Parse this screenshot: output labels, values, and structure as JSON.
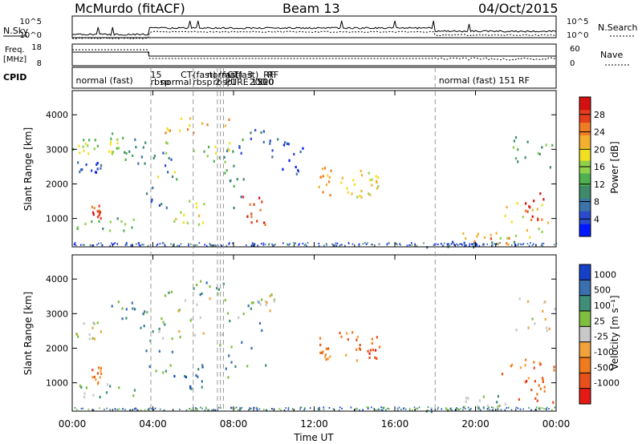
{
  "header": {
    "station": "McMurdo (fitACF)",
    "beam": "Beam 13",
    "date": "04/Oct/2015"
  },
  "side_labels": {
    "nsky": "N.Sky",
    "nsearch": "N.Search",
    "freq_line1": "Freq.",
    "freq_line2": "[MHz]",
    "nave": "Nave",
    "cpid": "CPID"
  },
  "strip_axes": {
    "noise_left": [
      "10^5",
      "10^0"
    ],
    "noise_right": [
      "10^5",
      "10^0"
    ],
    "freq_left": [
      "18",
      "8"
    ],
    "nave_right": [
      "60",
      "0"
    ]
  },
  "cpid_labels": [
    {
      "text": "normal (fast)",
      "t": 0.1
    },
    {
      "text": "rbsp",
      "t": 3.8
    },
    {
      "text": "15",
      "t": 3.8
    },
    {
      "text": "normal",
      "t": 4.3
    },
    {
      "text": "CT-",
      "t": 5.3
    },
    {
      "text": "rbsp",
      "t": 5.9
    },
    {
      "text": "(fast)",
      "t": 5.9
    },
    {
      "text": "rbsp",
      "t": 6.9
    },
    {
      "text": "normal",
      "t": 6.6
    },
    {
      "text": "2",
      "t": 7.0
    },
    {
      "text": "(fast)",
      "t": 7.2
    },
    {
      "text": "PURE",
      "t": 7.5
    },
    {
      "text": "CT-",
      "t": 7.6
    },
    {
      "text": "1",
      "t": 7.8
    },
    {
      "text": "(fast)",
      "t": 8.0
    },
    {
      "text": "200",
      "t": 8.7
    },
    {
      "text": "3",
      "t": 8.6
    },
    {
      "text": "1500",
      "t": 8.8
    },
    {
      "text": "RF",
      "t": 9.4
    },
    {
      "text": "220",
      "t": 9.1
    },
    {
      "text": "RF",
      "t": 9.6
    },
    {
      "text": "normal (fast) 151 RF",
      "t": 18.1
    }
  ],
  "chart_data": [
    {
      "type": "heatmap",
      "name_shown": "",
      "ylabel": "Slant Range [km]",
      "xlabel": "",
      "xlim": [
        0,
        24
      ],
      "ylim": [
        180,
        4700
      ],
      "x_ticks": [
        0,
        4,
        8,
        12,
        16,
        20,
        24
      ],
      "y_ticks": [
        1000,
        2000,
        3000,
        4000
      ],
      "colorbar": {
        "label": "Power [dB]",
        "ticks": [
          "4",
          "8",
          "12",
          "16",
          "20",
          "24",
          "28"
        ],
        "colors": [
          "#0018ff",
          "#2a4bd0",
          "#3c73a8",
          "#3f8a6a",
          "#4fb04f",
          "#8fd14a",
          "#f0e020",
          "#f3b030",
          "#ef7d24",
          "#e53e1c",
          "#d41010"
        ]
      },
      "scatter_regions": [
        {
          "t0": 0.0,
          "t1": 1.4,
          "r0": 2300,
          "r1": 2700,
          "lvl": 1
        },
        {
          "t0": 0.0,
          "t1": 1.3,
          "r0": 2850,
          "r1": 3500,
          "lvl": 5
        },
        {
          "t0": 0.9,
          "t1": 1.4,
          "r0": 950,
          "r1": 1400,
          "lvl": 9
        },
        {
          "t0": 0.2,
          "t1": 3.6,
          "r0": 620,
          "r1": 1100,
          "lvl": 4
        },
        {
          "t0": 1.7,
          "t1": 2.4,
          "r0": 2900,
          "r1": 3500,
          "lvl": 5
        },
        {
          "t0": 2.0,
          "t1": 3.6,
          "r0": 2600,
          "r1": 3400,
          "lvl": 3
        },
        {
          "t0": 3.6,
          "t1": 5.0,
          "r0": 1300,
          "r1": 3100,
          "lvl": 2
        },
        {
          "t0": 4.2,
          "t1": 7.8,
          "r0": 2100,
          "r1": 3500,
          "lvl": 5
        },
        {
          "t0": 4.4,
          "t1": 7.8,
          "r0": 3500,
          "r1": 4000,
          "lvl": 7
        },
        {
          "t0": 5.0,
          "t1": 6.6,
          "r0": 850,
          "r1": 1600,
          "lvl": 6
        },
        {
          "t0": 7.5,
          "t1": 8.5,
          "r0": 1000,
          "r1": 3400,
          "lvl": 3
        },
        {
          "t0": 8.4,
          "t1": 9.6,
          "r0": 700,
          "r1": 1700,
          "lvl": 9
        },
        {
          "t0": 8.2,
          "t1": 10.2,
          "r0": 2800,
          "r1": 3700,
          "lvl": 2
        },
        {
          "t0": 10.2,
          "t1": 11.4,
          "r0": 2300,
          "r1": 3300,
          "lvl": 1
        },
        {
          "t0": 12.2,
          "t1": 12.8,
          "r0": 1700,
          "r1": 2500,
          "lvl": 7
        },
        {
          "t0": 13.2,
          "t1": 14.4,
          "r0": 1600,
          "r1": 2500,
          "lvl": 6
        },
        {
          "t0": 14.6,
          "t1": 15.2,
          "r0": 1700,
          "r1": 2400,
          "lvl": 6
        },
        {
          "t0": 17.5,
          "t1": 22.3,
          "r0": 200,
          "r1": 380,
          "lvl": 2
        },
        {
          "t0": 19.2,
          "t1": 21.8,
          "r0": 250,
          "r1": 650,
          "lvl": 8
        },
        {
          "t0": 21.2,
          "t1": 24.0,
          "r0": 450,
          "r1": 1600,
          "lvl": 6
        },
        {
          "t0": 22.4,
          "t1": 23.4,
          "r0": 800,
          "r1": 1800,
          "lvl": 9
        },
        {
          "t0": 21.8,
          "t1": 24.0,
          "r0": 2500,
          "r1": 3500,
          "lvl": 4
        }
      ]
    },
    {
      "type": "heatmap",
      "name_shown": "",
      "ylabel": "Slant Range [km]",
      "xlabel": "Time UT",
      "xlim": [
        0,
        24
      ],
      "ylim": [
        180,
        4700
      ],
      "x_ticks": [
        0,
        4,
        8,
        12,
        16,
        20,
        24
      ],
      "x_tick_labels": [
        "00:00",
        "04:00",
        "08:00",
        "12:00",
        "16:00",
        "20:00",
        "00:00"
      ],
      "y_ticks": [
        1000,
        2000,
        3000,
        4000
      ],
      "colorbar": {
        "label": "Velocity [m s⁻¹]",
        "ticks": [
          "1000",
          "500",
          "100",
          "25",
          "-25",
          "-100",
          "-500",
          "-1000"
        ],
        "colors": [
          "#1540c8",
          "#3a6fb0",
          "#3e8e78",
          "#7fbf3f",
          "#c8c8c8",
          "#f2a23a",
          "#f07b1e",
          "#e8501a",
          "#e51a14"
        ]
      },
      "scatter_regions": [
        {
          "t0": 0.0,
          "t1": 1.4,
          "r0": 2300,
          "r1": 2800,
          "lvl": 4
        },
        {
          "t0": 0.9,
          "t1": 1.4,
          "r0": 950,
          "r1": 1500,
          "lvl": 6
        },
        {
          "t0": 0.2,
          "t1": 3.6,
          "r0": 620,
          "r1": 1000,
          "lvl": 3
        },
        {
          "t0": 1.7,
          "t1": 3.6,
          "r0": 2600,
          "r1": 3400,
          "lvl": 2
        },
        {
          "t0": 3.6,
          "t1": 5.0,
          "r0": 1300,
          "r1": 3100,
          "lvl": 2
        },
        {
          "t0": 4.2,
          "t1": 7.8,
          "r0": 2100,
          "r1": 3500,
          "lvl": 4
        },
        {
          "t0": 4.4,
          "t1": 7.8,
          "r0": 3500,
          "r1": 4000,
          "lvl": 2
        },
        {
          "t0": 5.0,
          "t1": 6.6,
          "r0": 850,
          "r1": 1600,
          "lvl": 1
        },
        {
          "t0": 7.5,
          "t1": 9.6,
          "r0": 1000,
          "r1": 3400,
          "lvl": 2
        },
        {
          "t0": 8.2,
          "t1": 10.2,
          "r0": 2800,
          "r1": 3700,
          "lvl": 4
        },
        {
          "t0": 12.2,
          "t1": 12.8,
          "r0": 1700,
          "r1": 2500,
          "lvl": 6
        },
        {
          "t0": 13.2,
          "t1": 14.4,
          "r0": 1600,
          "r1": 2500,
          "lvl": 6
        },
        {
          "t0": 14.6,
          "t1": 15.2,
          "r0": 1700,
          "r1": 2400,
          "lvl": 7
        },
        {
          "t0": 17.5,
          "t1": 22.3,
          "r0": 200,
          "r1": 380,
          "lvl": 3
        },
        {
          "t0": 19.2,
          "t1": 21.8,
          "r0": 250,
          "r1": 650,
          "lvl": 3
        },
        {
          "t0": 21.2,
          "t1": 24.0,
          "r0": 450,
          "r1": 1600,
          "lvl": 6
        },
        {
          "t0": 22.4,
          "t1": 23.4,
          "r0": 800,
          "r1": 1800,
          "lvl": 7
        },
        {
          "t0": 21.8,
          "t1": 24.0,
          "r0": 2500,
          "r1": 3500,
          "lvl": 4
        }
      ]
    }
  ]
}
